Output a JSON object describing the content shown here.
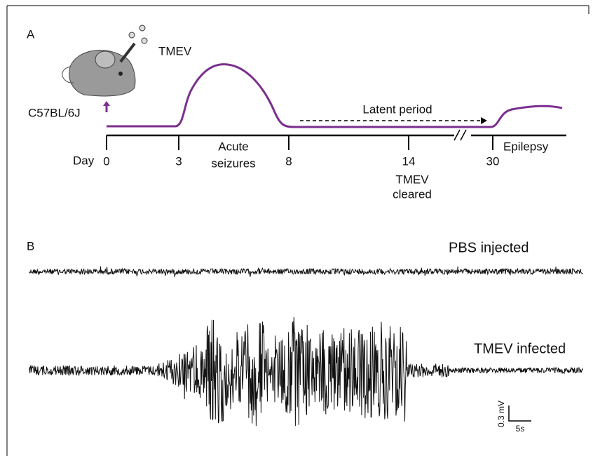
{
  "panel_a": {
    "label": "A",
    "virus": "TMEV",
    "strain": "C57BL/6J",
    "latent": "Latent period",
    "day_label": "Day",
    "ticks": [
      "0",
      "3",
      "8",
      "14",
      "30"
    ],
    "acute": [
      "Acute",
      "seizures"
    ],
    "cleared": [
      "TMEV",
      "cleared"
    ],
    "epilepsy": "Epilepsy"
  },
  "panel_b": {
    "label": "B",
    "trace_1": "PBS injected",
    "trace_2": "TMEV infected",
    "scale_v": "0.3 mV",
    "scale_t": "5s"
  }
}
